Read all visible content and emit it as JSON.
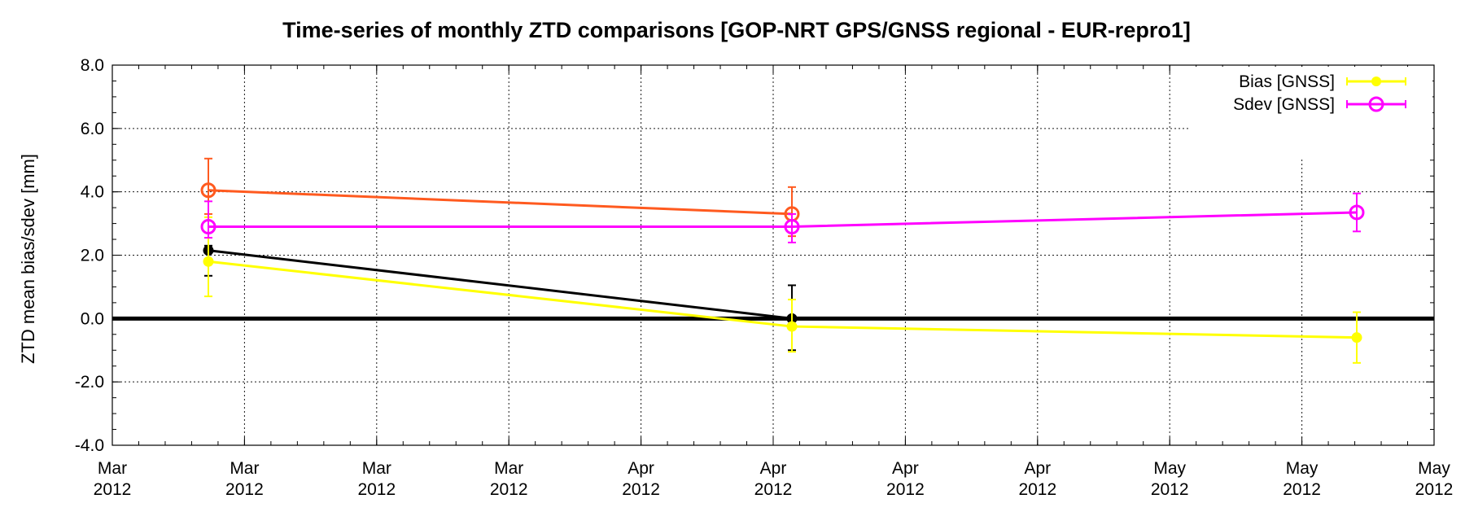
{
  "chart_data": {
    "type": "line",
    "title": "Time-series of monthly ZTD comparisons [GOP-NRT GPS/GNSS regional - EUR-repro1]",
    "xlabel": "",
    "ylabel": "ZTD mean bias/sdev [mm]",
    "ylim": [
      -4.0,
      8.0
    ],
    "y_ticks": [
      "-4.0",
      "-2.0",
      "0.0",
      "2.0",
      "4.0",
      "6.0",
      "8.0"
    ],
    "x_ticks": [
      {
        "month": "Mar",
        "year": "2012"
      },
      {
        "month": "Mar",
        "year": "2012"
      },
      {
        "month": "Mar",
        "year": "2012"
      },
      {
        "month": "Mar",
        "year": "2012"
      },
      {
        "month": "Apr",
        "year": "2012"
      },
      {
        "month": "Apr",
        "year": "2012"
      },
      {
        "month": "Apr",
        "year": "2012"
      },
      {
        "month": "Apr",
        "year": "2012"
      },
      {
        "month": "May",
        "year": "2012"
      },
      {
        "month": "May",
        "year": "2012"
      },
      {
        "month": "May",
        "year": "2012"
      }
    ],
    "grid": true,
    "legend_position": "top-right",
    "legend": [
      "Bias [GNSS]",
      "Sdev [GNSS]"
    ],
    "x_dates": [
      "2012-03-15",
      "2012-04-15",
      "2012-05-15"
    ],
    "series": [
      {
        "name": "Bias [GNSS]",
        "color": "#ffff00",
        "marker": "filled-circle",
        "x": [
          0,
          1,
          2
        ],
        "values": [
          1.8,
          -0.25,
          -0.6
        ],
        "err_low": [
          0.7,
          -1.05,
          -1.4
        ],
        "err_high": [
          3.2,
          0.6,
          0.2
        ]
      },
      {
        "name": "Sdev [GNSS]",
        "color": "#ff00ff",
        "marker": "open-circle",
        "x": [
          0,
          1,
          2
        ],
        "values": [
          2.9,
          2.9,
          3.35
        ],
        "err_low": [
          2.55,
          2.4,
          2.75
        ],
        "err_high": [
          3.7,
          3.3,
          3.95
        ]
      },
      {
        "color": "#000000",
        "marker": "filled-circle",
        "x": [
          0,
          1
        ],
        "values": [
          2.15,
          0.0
        ],
        "err_low": [
          1.35,
          -1.0
        ],
        "err_high": [
          2.3,
          1.05
        ]
      },
      {
        "color": "#ff5a1f",
        "marker": "open-circle",
        "x": [
          0,
          1
        ],
        "values": [
          4.05,
          3.3
        ],
        "err_low": [
          3.3,
          2.6
        ],
        "err_high": [
          5.05,
          4.15
        ]
      }
    ]
  }
}
